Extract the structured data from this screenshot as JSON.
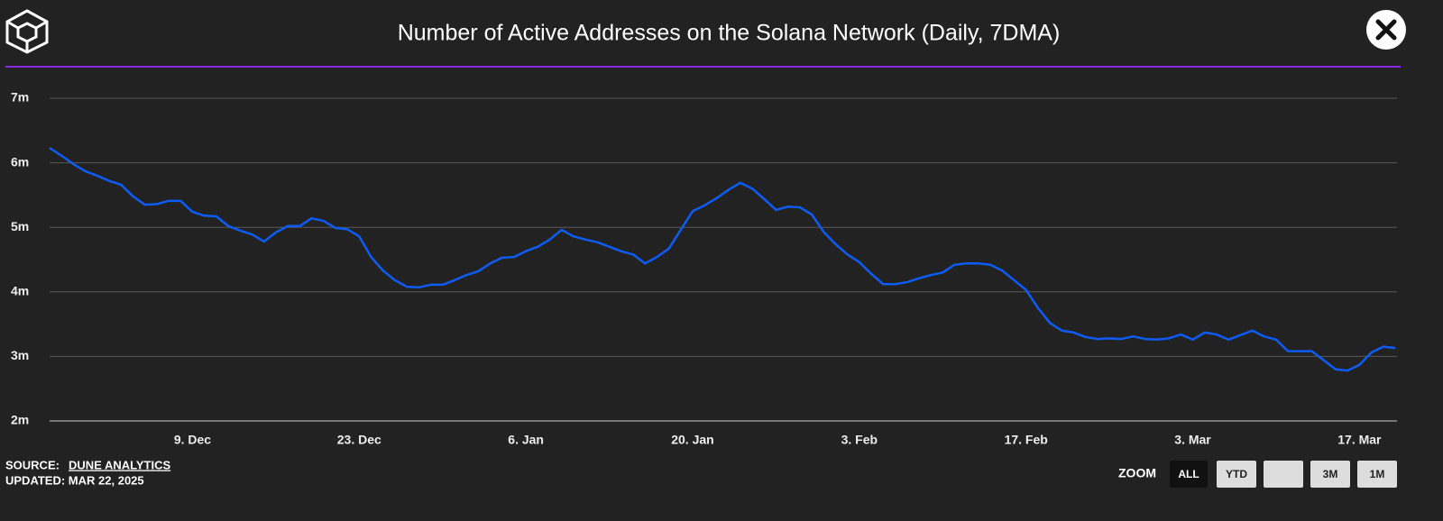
{
  "chart_data": {
    "type": "line",
    "title": "Number of Active Addresses on the Solana Network (Daily, 7DMA)",
    "x": [
      "27. Nov",
      "28. Nov",
      "29. Nov",
      "30. Nov",
      "1. Dec",
      "2. Dec",
      "3. Dec",
      "4. Dec",
      "5. Dec",
      "6. Dec",
      "7. Dec",
      "8. Dec",
      "9. Dec",
      "10. Dec",
      "11. Dec",
      "12. Dec",
      "13. Dec",
      "14. Dec",
      "15. Dec",
      "16. Dec",
      "17. Dec",
      "18. Dec",
      "19. Dec",
      "20. Dec",
      "21. Dec",
      "22. Dec",
      "23. Dec",
      "24. Dec",
      "25. Dec",
      "26. Dec",
      "27. Dec",
      "28. Dec",
      "29. Dec",
      "30. Dec",
      "31. Dec",
      "1. Jan",
      "2. Jan",
      "3. Jan",
      "4. Jan",
      "5. Jan",
      "6. Jan",
      "7. Jan",
      "8. Jan",
      "9. Jan",
      "10. Jan",
      "11. Jan",
      "12. Jan",
      "13. Jan",
      "14. Jan",
      "15. Jan",
      "16. Jan",
      "17. Jan",
      "18. Jan",
      "19. Jan",
      "20. Jan",
      "21. Jan",
      "22. Jan",
      "23. Jan",
      "24. Jan",
      "25. Jan",
      "26. Jan",
      "27. Jan",
      "28. Jan",
      "29. Jan",
      "30. Jan",
      "31. Jan",
      "1. Feb",
      "2. Feb",
      "3. Feb",
      "4. Feb",
      "5. Feb",
      "6. Feb",
      "7. Feb",
      "8. Feb",
      "9. Feb",
      "10. Feb",
      "11. Feb",
      "12. Feb",
      "13. Feb",
      "14. Feb",
      "15. Feb",
      "16. Feb",
      "17. Feb",
      "18. Feb",
      "19. Feb",
      "20. Feb",
      "21. Feb",
      "22. Feb",
      "23. Feb",
      "24. Feb",
      "25. Feb",
      "26. Feb",
      "27. Feb",
      "28. Feb",
      "1. Mar",
      "2. Mar",
      "3. Mar",
      "4. Mar",
      "5. Mar",
      "6. Mar",
      "7. Mar",
      "8. Mar",
      "9. Mar",
      "10. Mar",
      "11. Mar",
      "12. Mar",
      "13. Mar",
      "14. Mar",
      "15. Mar",
      "16. Mar",
      "17. Mar",
      "18. Mar",
      "19. Mar",
      "20. Mar"
    ],
    "values": [
      6.23,
      6.11,
      5.98,
      5.87,
      5.8,
      5.72,
      5.66,
      5.48,
      5.35,
      5.36,
      5.41,
      5.41,
      5.24,
      5.18,
      5.17,
      5.02,
      4.95,
      4.89,
      4.78,
      4.92,
      5.02,
      5.02,
      5.14,
      5.1,
      4.99,
      4.97,
      4.86,
      4.54,
      4.33,
      4.18,
      4.08,
      4.07,
      4.11,
      4.11,
      4.18,
      4.26,
      4.32,
      4.44,
      4.53,
      4.54,
      4.63,
      4.7,
      4.81,
      4.96,
      4.86,
      4.81,
      4.77,
      4.7,
      4.63,
      4.58,
      4.44,
      4.54,
      4.67,
      4.96,
      5.25,
      5.34,
      5.45,
      5.58,
      5.69,
      5.6,
      5.44,
      5.27,
      5.32,
      5.31,
      5.2,
      4.93,
      4.74,
      4.58,
      4.46,
      4.28,
      4.12,
      4.12,
      4.15,
      4.21,
      4.26,
      4.3,
      4.42,
      4.44,
      4.44,
      4.42,
      4.33,
      4.18,
      4.03,
      3.75,
      3.52,
      3.4,
      3.37,
      3.3,
      3.27,
      3.28,
      3.27,
      3.31,
      3.27,
      3.26,
      3.28,
      3.34,
      3.26,
      3.37,
      3.34,
      3.26,
      3.33,
      3.4,
      3.31,
      3.26,
      3.08,
      3.08,
      3.08,
      2.94,
      2.8,
      2.78,
      2.87,
      3.06,
      3.15,
      3.13
    ],
    "color": "#0d5cf5",
    "xticks": [
      "9. Dec",
      "23. Dec",
      "6. Jan",
      "20. Jan",
      "3. Feb",
      "17. Feb",
      "3. Mar",
      "17. Mar"
    ],
    "ylim": [
      2,
      7
    ],
    "yticks": [
      {
        "value": 2,
        "label": "2m"
      },
      {
        "value": 3,
        "label": "3m"
      },
      {
        "value": 4,
        "label": "4m"
      },
      {
        "value": 5,
        "label": "5m"
      },
      {
        "value": 6,
        "label": "6m"
      },
      {
        "value": 7,
        "label": "7m"
      }
    ],
    "grid": true
  },
  "footer": {
    "source_label": "SOURCE:",
    "source_link": "DUNE ANALYTICS",
    "updated": "UPDATED: MAR 22, 2025"
  },
  "zoom": {
    "label": "ZOOM",
    "buttons": [
      "ALL",
      "YTD",
      "3M",
      "1M"
    ]
  }
}
